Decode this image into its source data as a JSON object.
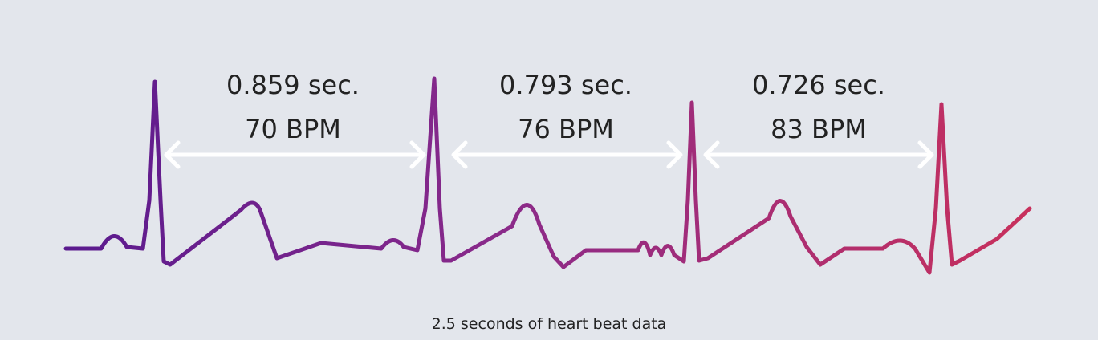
{
  "intervals": [
    {
      "duration": "0.859 sec.",
      "rate": "70 BPM"
    },
    {
      "duration": "0.793 sec.",
      "rate": "76 BPM"
    },
    {
      "duration": "0.726 sec.",
      "rate": "83 BPM"
    }
  ],
  "caption": "2.5 seconds of heart beat data"
}
